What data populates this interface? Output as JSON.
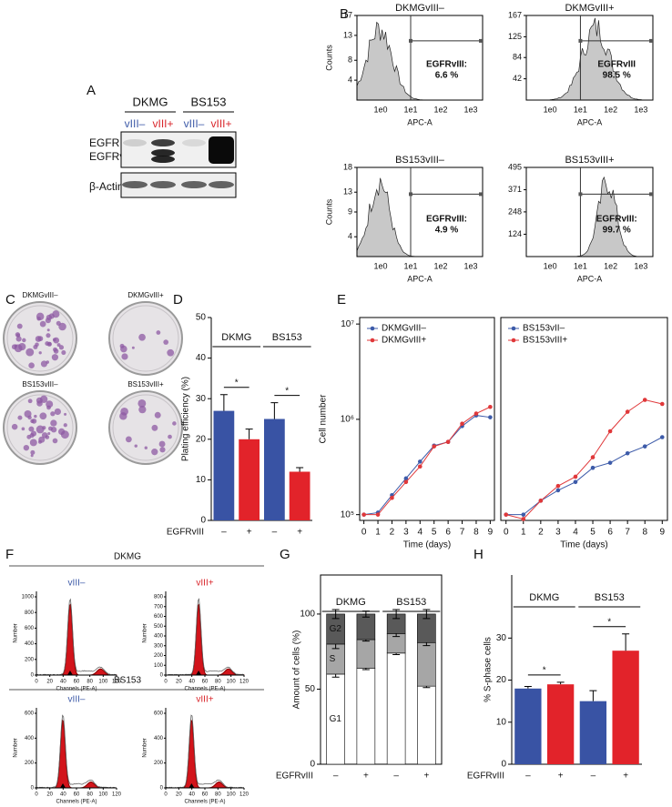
{
  "panel_labels": [
    "A",
    "B",
    "C",
    "D",
    "E",
    "F",
    "G",
    "H"
  ],
  "western_blot": {
    "cell_lines": [
      "DKMG",
      "BS153"
    ],
    "lanes": [
      "vIII–",
      "vIII+",
      "vIII–",
      "vIII+"
    ],
    "rows": [
      "EGFR",
      "EGFRvIII",
      "β-Actin"
    ]
  },
  "flow_cytometry": {
    "xlabel": "APC-A",
    "ylabel": "Counts",
    "xticks": [
      "1e0",
      "1e1",
      "1e2",
      "1e3"
    ],
    "panels": [
      {
        "title": "DKMGvIII–",
        "yticks": [
          17,
          13,
          8,
          4
        ],
        "gate_label": "EGFRvIII:",
        "percent": "6.6 %"
      },
      {
        "title": "DKMGvIII+",
        "yticks": [
          167,
          125,
          84,
          42
        ],
        "gate_label": "EGFRvIII",
        "percent": "98.5 %"
      },
      {
        "title": "BS153vIII–",
        "yticks": [
          18,
          13,
          9,
          4
        ],
        "gate_label": "EGFRvIII:",
        "percent": "4.9 %"
      },
      {
        "title": "BS153vIII+",
        "yticks": [
          495,
          371,
          248,
          124
        ],
        "gate_label": "EGFRvIII:",
        "percent": "99.7 %"
      }
    ]
  },
  "colony_assay": {
    "labels": [
      "DKMGvIII–",
      "DKMGvIII+",
      "BS153vIII–",
      "BS153vIII+"
    ]
  },
  "cell_cycle": {
    "groups": [
      "DKMG",
      "BS153"
    ],
    "conditions": [
      "vIII–",
      "vIII+"
    ],
    "xlabel": "Channels (PE-A)",
    "ylabel": "Number",
    "xticks": [
      0,
      20,
      40,
      60,
      80,
      100,
      120
    ],
    "yticks": [
      [
        0,
        200,
        400,
        600,
        800,
        1000
      ],
      [
        0,
        100,
        200,
        300,
        400,
        500,
        600,
        700,
        800
      ],
      [
        0,
        200,
        400,
        600
      ],
      [
        0,
        200,
        400,
        600
      ]
    ]
  },
  "chart_data": [
    {
      "type": "bar",
      "ylabel": "Plating efficiency (%)",
      "xlabel": "EGFRvIII",
      "groups": [
        "DKMG",
        "BS153"
      ],
      "categories": [
        "–",
        "+",
        "–",
        "+"
      ],
      "values": [
        27,
        20,
        25,
        12
      ],
      "errors": [
        4,
        2.5,
        4,
        1
      ],
      "colors": [
        "#3953a4",
        "#e2232a",
        "#3953a4",
        "#e2232a"
      ],
      "ylim": [
        0,
        50
      ],
      "yticks": [
        0,
        10,
        20,
        30,
        40,
        50
      ],
      "significance": [
        "*",
        "*"
      ]
    },
    {
      "type": "line",
      "log_scale": true,
      "xlabel": "Time (days)",
      "ylabel": "Cell number",
      "x": [
        0,
        1,
        2,
        3,
        4,
        5,
        6,
        7,
        8,
        9
      ],
      "xlim": [
        -0.3,
        9.3
      ],
      "xticks": [
        0,
        1,
        2,
        3,
        4,
        5,
        6,
        7,
        8,
        9
      ],
      "ylim": [
        87000,
        11700000
      ],
      "yticks": [
        {
          "value": 100000,
          "label": "10⁵"
        },
        {
          "value": 1000000,
          "label": "10⁶"
        },
        {
          "value": 10000000,
          "label": "10⁷"
        }
      ],
      "legend": "upper left",
      "series": [
        {
          "name": "DKMGvIII–",
          "color": "#3d5ba9",
          "values": [
            100000,
            105000,
            160000,
            240000,
            360000,
            530000,
            580000,
            850000,
            1100000,
            1050000
          ]
        },
        {
          "name": "DKMGvIII+",
          "color": "#e0383a",
          "values": [
            100000,
            100000,
            150000,
            220000,
            320000,
            520000,
            580000,
            900000,
            1150000,
            1350000
          ]
        }
      ]
    },
    {
      "type": "line",
      "log_scale": true,
      "xlabel": "Time (days)",
      "x": [
        0,
        1,
        2,
        3,
        4,
        5,
        6,
        7,
        8,
        9
      ],
      "xlim": [
        -0.3,
        9.3
      ],
      "xticks": [
        0,
        1,
        2,
        3,
        4,
        5,
        6,
        7,
        8,
        9
      ],
      "ylim": [
        87000,
        11700000
      ],
      "legend": "upper left",
      "series": [
        {
          "name": "BS153vII–",
          "color": "#3d5ba9",
          "values": [
            100000,
            100000,
            140000,
            180000,
            220000,
            310000,
            350000,
            440000,
            520000,
            650000
          ]
        },
        {
          "name": "BS153vIII+",
          "color": "#e0383a",
          "values": [
            100000,
            90000,
            140000,
            200000,
            250000,
            400000,
            750000,
            1200000,
            1600000,
            1450000
          ]
        }
      ]
    },
    {
      "type": "stacked_bar",
      "ylabel": "Amount of cells (%)",
      "xlabel": "EGFRvIII",
      "groups": [
        "DKMG",
        "BS153"
      ],
      "categories": [
        "–",
        "+",
        "–",
        "+"
      ],
      "ylim": [
        0,
        126
      ],
      "yticks": [
        0,
        50,
        100
      ],
      "series": [
        {
          "name": "G1",
          "color": "#ffffff",
          "values": [
            60,
            64,
            74,
            52
          ],
          "errors": [
            2,
            1,
            1,
            1
          ]
        },
        {
          "name": "S",
          "color": "#a6a6a6",
          "values": [
            20,
            19,
            13,
            29
          ],
          "errors": [
            3,
            1,
            2,
            2
          ]
        },
        {
          "name": "G2",
          "color": "#595959",
          "values": [
            20,
            17,
            13,
            19
          ],
          "errors": [
            3,
            2,
            3,
            3
          ]
        }
      ]
    },
    {
      "type": "bar",
      "ylabel": "% S-phase cells",
      "xlabel": "EGFRvIII",
      "groups": [
        "DKMG",
        "BS153"
      ],
      "categories": [
        "–",
        "+",
        "–",
        "+"
      ],
      "values": [
        18,
        19,
        15,
        27
      ],
      "errors": [
        0.5,
        0.5,
        2.5,
        4
      ],
      "colors": [
        "#3953a4",
        "#e2232a",
        "#3953a4",
        "#e2232a"
      ],
      "ylim": [
        0,
        45
      ],
      "yticks": [
        0,
        10,
        20,
        30
      ],
      "significance": [
        "*",
        "*"
      ]
    }
  ]
}
